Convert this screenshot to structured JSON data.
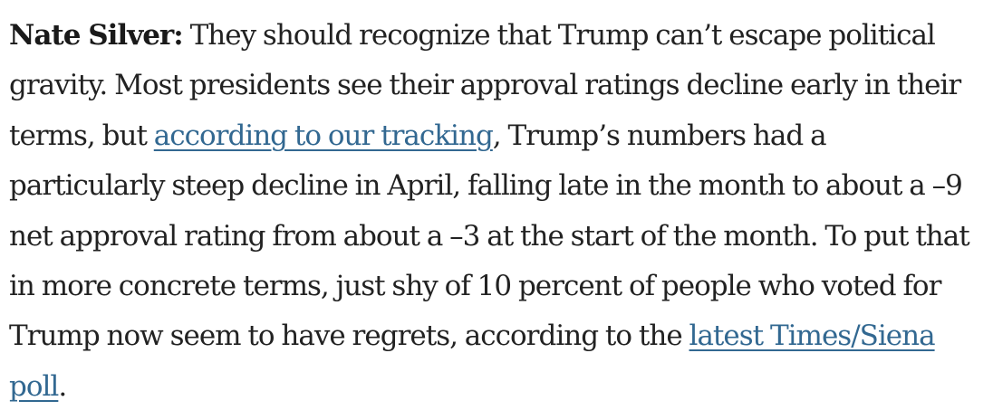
{
  "paragraph": {
    "speaker": "Nate Silver:",
    "text_1": "They should recognize that Trump can’t escape political gravity. Most presidents see their approval ratings decline early in their terms, but",
    "link_1": "according to our tracking",
    "text_2": ", Trump’s numbers had a particularly steep decline in April, falling late in the month to about a –9 net approval rating from about a –3 at the start of the month. To put that in more concrete terms, just shy of 10 percent of people who voted for Trump now seem to have regrets, according to the",
    "link_2": "latest Times/Siena poll",
    "text_3": ".",
    "colors": {
      "text": "#222222",
      "link": "#326891"
    }
  }
}
